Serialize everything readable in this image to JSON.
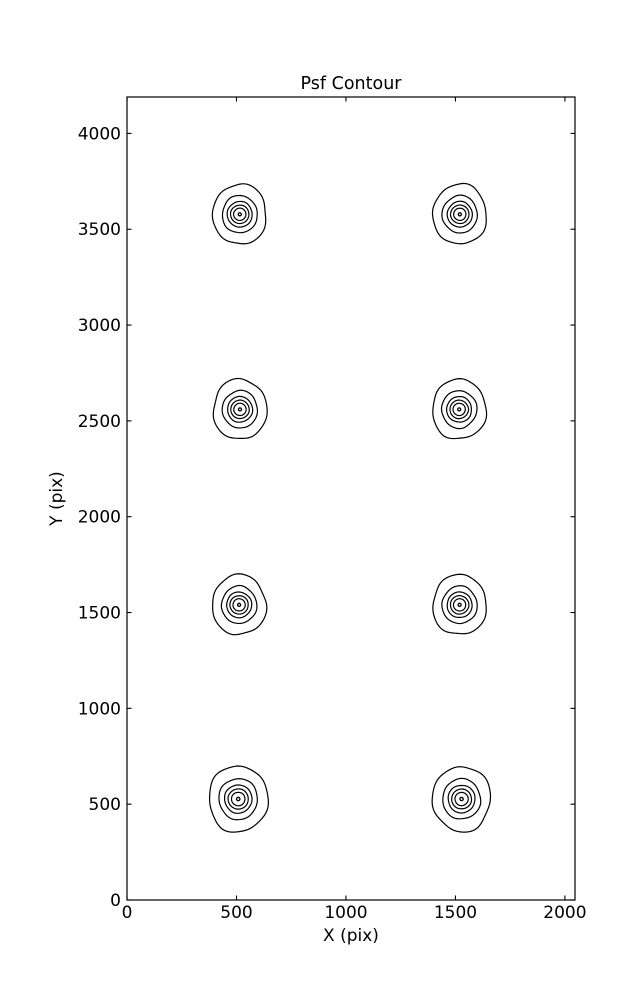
{
  "figure": {
    "title": "Psf Contour"
  },
  "axes": {
    "xlabel": "X (pix)",
    "ylabel": "Y (pix)",
    "xlim": [
      0,
      2046
    ],
    "ylim": [
      0,
      4190
    ],
    "xticks": [
      0,
      500,
      1000,
      1500,
      2000
    ],
    "yticks": [
      0,
      500,
      1000,
      1500,
      2000,
      2500,
      3000,
      3500,
      4000
    ]
  },
  "chart_data": {
    "type": "contour",
    "title": "Psf Contour",
    "xlabel": "X (pix)",
    "ylabel": "Y (pix)",
    "xlim": [
      0,
      2046
    ],
    "ylim": [
      0,
      4190
    ],
    "grid": false,
    "legend": false,
    "n_contour_levels": 6,
    "line_color": "#000000",
    "psf_sources": [
      {
        "x": 515,
        "y": 3578,
        "size": 1.0
      },
      {
        "x": 1520,
        "y": 3578,
        "size": 1.0
      },
      {
        "x": 516,
        "y": 2560,
        "size": 1.0
      },
      {
        "x": 1517,
        "y": 2560,
        "size": 1.0
      },
      {
        "x": 512,
        "y": 1540,
        "size": 1.0
      },
      {
        "x": 1519,
        "y": 1540,
        "size": 1.0
      },
      {
        "x": 508,
        "y": 527,
        "size": 1.1
      },
      {
        "x": 1528,
        "y": 527,
        "size": 1.08
      }
    ],
    "contour_radii_datapix": [
      123,
      80,
      57,
      42,
      28,
      7
    ],
    "contour_aspect_y": [
      1.12,
      1.07,
      1.03,
      1.0,
      1.0,
      1.0
    ]
  },
  "colors": {
    "line": "#000000",
    "background": "#ffffff",
    "text": "#000000"
  }
}
